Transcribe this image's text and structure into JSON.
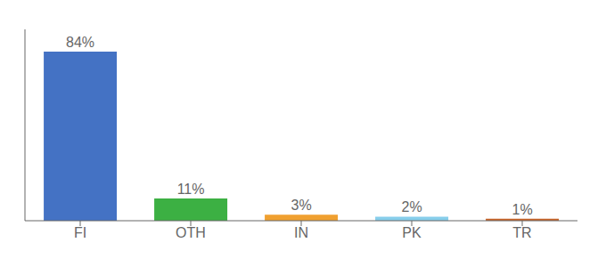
{
  "chart_data": {
    "type": "bar",
    "categories": [
      "FI",
      "OTH",
      "IN",
      "PK",
      "TR"
    ],
    "values": [
      84,
      11,
      3,
      2,
      1
    ],
    "value_labels": [
      "84%",
      "11%",
      "3%",
      "2%",
      "1%"
    ],
    "colors": [
      "#4472c4",
      "#3cb043",
      "#f0a030",
      "#87ceeb",
      "#c86428"
    ],
    "ylim": [
      0,
      95
    ],
    "data_labels": true,
    "tick_labels": "x",
    "grid": false
  }
}
